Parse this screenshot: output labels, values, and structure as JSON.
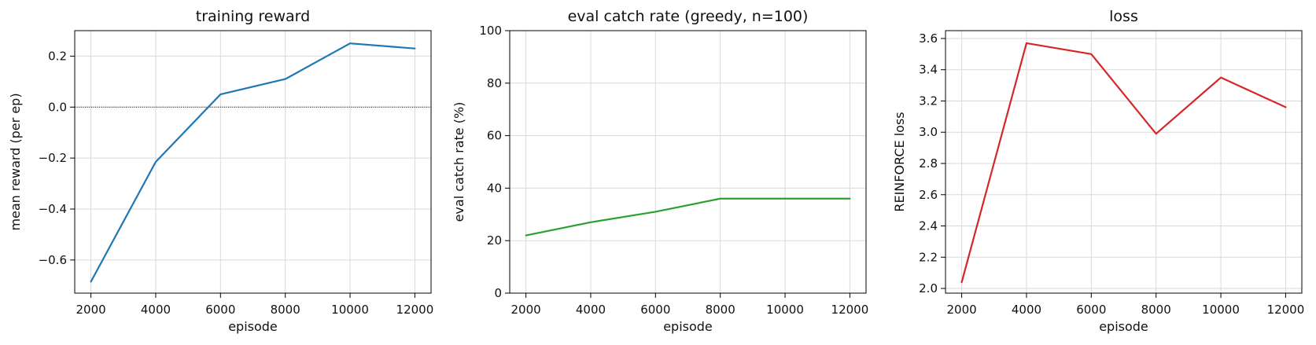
{
  "chart_data": [
    {
      "type": "line",
      "title": "training reward",
      "xlabel": "episode",
      "ylabel": "mean reward (per ep)",
      "x": [
        2000,
        4000,
        6000,
        8000,
        10000,
        12000
      ],
      "xlim": [
        1500,
        12500
      ],
      "ylim": [
        -0.73,
        0.3
      ],
      "xticks": [
        2000,
        4000,
        6000,
        8000,
        10000,
        12000
      ],
      "yticks": [
        -0.6,
        -0.4,
        -0.2,
        0.0,
        0.2
      ],
      "ytick_labels": [
        "−0.6",
        "−0.4",
        "−0.2",
        "0.0",
        "0.2"
      ],
      "grid": true,
      "reference_line": 0,
      "series": [
        {
          "values": [
            -0.685,
            -0.215,
            0.05,
            0.11,
            0.25,
            0.23
          ],
          "color": "#1f77b4"
        }
      ]
    },
    {
      "type": "line",
      "title": "eval catch rate (greedy, n=100)",
      "xlabel": "episode",
      "ylabel": "eval catch rate (%)",
      "x": [
        2000,
        4000,
        6000,
        8000,
        10000,
        12000
      ],
      "xlim": [
        1500,
        12500
      ],
      "ylim": [
        0,
        100
      ],
      "xticks": [
        2000,
        4000,
        6000,
        8000,
        10000,
        12000
      ],
      "yticks": [
        0,
        20,
        40,
        60,
        80,
        100
      ],
      "ytick_labels": [
        "0",
        "20",
        "40",
        "60",
        "80",
        "100"
      ],
      "grid": true,
      "series": [
        {
          "values": [
            22,
            27,
            31,
            36,
            36,
            36
          ],
          "color": "#2ca02c"
        }
      ]
    },
    {
      "type": "line",
      "title": "loss",
      "xlabel": "episode",
      "ylabel": "REINFORCE loss",
      "x": [
        2000,
        4000,
        6000,
        8000,
        10000,
        12000
      ],
      "xlim": [
        1500,
        12500
      ],
      "ylim": [
        1.97,
        3.65
      ],
      "xticks": [
        2000,
        4000,
        6000,
        8000,
        10000,
        12000
      ],
      "yticks": [
        2.0,
        2.2,
        2.4,
        2.6,
        2.8,
        3.0,
        3.2,
        3.4,
        3.6
      ],
      "ytick_labels": [
        "2.0",
        "2.2",
        "2.4",
        "2.6",
        "2.8",
        "3.0",
        "3.2",
        "3.4",
        "3.6"
      ],
      "grid": true,
      "series": [
        {
          "values": [
            2.04,
            3.57,
            3.5,
            2.99,
            3.35,
            3.16
          ],
          "color": "#d62728"
        }
      ]
    }
  ]
}
